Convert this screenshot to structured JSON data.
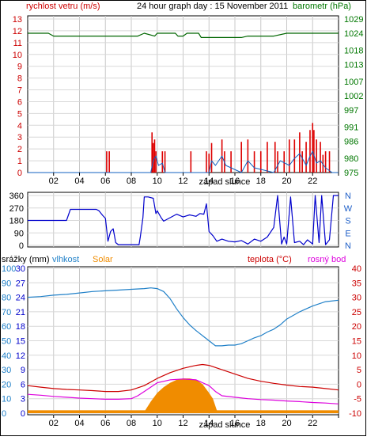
{
  "chart_data": [
    {
      "type": "line",
      "title": "24 hour graph day : 15 November 2011",
      "left_axis_label": "rychlost vetru (m/s)",
      "right_axis_label": "barometr (hPa)",
      "left_ticks": [
        "0",
        "1",
        "2",
        "3",
        "4",
        "5",
        "6",
        "7",
        "8",
        "9",
        "10",
        "11",
        "12",
        "13"
      ],
      "right_ticks": [
        "975",
        "980",
        "986",
        "991",
        "997",
        "1002",
        "1007",
        "1013",
        "1018",
        "1024",
        "1029"
      ],
      "x_ticks": [
        "02",
        "04",
        "06",
        "08",
        "10",
        "12",
        "14",
        "16",
        "18",
        "20",
        "22",
        ""
      ],
      "x_annotation": "západ slunce",
      "xlim": [
        0,
        24
      ],
      "ylim_left": [
        0,
        13
      ],
      "ylim_right": [
        975,
        1029
      ],
      "grid": true,
      "colors": {
        "wind_gust": "#dd0000",
        "wind_avg": "#1060c0",
        "pressure": "#006600"
      },
      "series": [
        {
          "key": "pressure",
          "axis": "right",
          "x": [
            0,
            1.6,
            2,
            8,
            8.5,
            9,
            9.8,
            10,
            11.4,
            11.6,
            12,
            12.3,
            13.2,
            13.4,
            16.5,
            17,
            19,
            20,
            22,
            24
          ],
          "values": [
            1024,
            1024,
            1023,
            1023,
            1023,
            1024,
            1023,
            1024,
            1024,
            1023,
            1023,
            1024,
            1024,
            1022.5,
            1022.5,
            1023,
            1023,
            1024,
            1024,
            1024
          ]
        },
        {
          "key": "wind_gust",
          "axis": "left",
          "x": [
            6.1,
            6.3,
            9.6,
            9.7,
            9.8,
            9.9,
            10.4,
            10.6,
            12.6,
            13.8,
            14.0,
            14.2,
            15.0,
            15.2,
            15.7,
            16.5,
            17.0,
            17.5,
            18.0,
            18.5,
            19.1,
            19.3,
            19.8,
            20.2,
            20.6,
            21.0,
            21.2,
            21.5,
            21.8,
            22.0,
            22.1,
            22.3,
            22.6,
            22.8,
            23.0,
            23.3
          ],
          "values": [
            1.8,
            1.8,
            3.4,
            2.5,
            2.8,
            1.8,
            1.8,
            1.8,
            1.8,
            1.8,
            1.6,
            2.5,
            2.8,
            1.8,
            1.8,
            2.6,
            2.8,
            1.8,
            1.8,
            2.6,
            2.6,
            1.8,
            1.8,
            2.8,
            2.8,
            3.4,
            1.8,
            2.6,
            3.6,
            4.2,
            3.6,
            2.8,
            2.6,
            1.5,
            1.8,
            1.8
          ]
        },
        {
          "key": "wind_avg",
          "axis": "left",
          "x": [
            0,
            9.5,
            9.7,
            9.9,
            10.1,
            10.4,
            10.6,
            14.0,
            14.2,
            14.5,
            15.0,
            15.3,
            16.5,
            17.0,
            17.5,
            19.0,
            19.5,
            20.2,
            20.6,
            21.0,
            21.5,
            21.8,
            22.0,
            22.3,
            22.6,
            23.0,
            23.5,
            24
          ],
          "values": [
            0,
            0,
            1.0,
            1.4,
            0.6,
            0.8,
            0,
            0,
            1.0,
            0.6,
            1.4,
            0.6,
            0,
            1.0,
            0.4,
            0,
            1.0,
            0.6,
            1.2,
            1.6,
            0.6,
            1.4,
            1.8,
            0.8,
            1.0,
            0.4,
            0,
            0
          ]
        }
      ]
    },
    {
      "type": "line",
      "title": "",
      "left_ticks": [
        "0",
        "90",
        "180",
        "270",
        "360"
      ],
      "right_ticks": [
        "N",
        "W",
        "S",
        "E",
        "N"
      ],
      "x_ticks": [
        "02",
        "04",
        "06",
        "08",
        "10",
        "12",
        "14",
        "16",
        "18",
        "20",
        "22",
        ""
      ],
      "xlim": [
        0,
        24
      ],
      "ylim": [
        0,
        360
      ],
      "grid": true,
      "series": [
        {
          "key": "wind_dir",
          "color": "#0000cc",
          "x": [
            0,
            3.0,
            3.3,
            5.3,
            5.5,
            5.8,
            6.0,
            6.2,
            6.4,
            6.6,
            6.8,
            7.0,
            7.2,
            7.5,
            8.6,
            8.7,
            8.9,
            9.0,
            9.3,
            9.7,
            9.9,
            10.0,
            10.3,
            10.5,
            11.0,
            11.5,
            12.0,
            12.5,
            13.0,
            13.3,
            13.6,
            13.8,
            14.0,
            14.3,
            14.6,
            15.0,
            15.5,
            16.0,
            16.5,
            17.0,
            17.5,
            18.0,
            18.5,
            19.0,
            19.3,
            19.6,
            19.8,
            20.0,
            20.3,
            20.6,
            21.0,
            21.3,
            21.6,
            22.0,
            22.2,
            22.5,
            22.7,
            23.0,
            23.3,
            23.6,
            24
          ],
          "values": [
            180,
            180,
            260,
            260,
            250,
            215,
            195,
            30,
            100,
            120,
            20,
            5,
            5,
            5,
            5,
            65,
            200,
            350,
            350,
            340,
            230,
            250,
            200,
            175,
            200,
            225,
            205,
            220,
            210,
            230,
            225,
            300,
            100,
            70,
            30,
            45,
            30,
            25,
            35,
            10,
            45,
            30,
            60,
            130,
            360,
            10,
            60,
            10,
            350,
            20,
            30,
            5,
            40,
            10,
            360,
            20,
            360,
            5,
            40,
            360,
            360
          ]
        }
      ]
    },
    {
      "type": "line",
      "title": "",
      "legend": [
        "srážky (mm)",
        "vlhkost",
        "Solar",
        "teplota (°C)",
        "rosný bod"
      ],
      "left_ticks_rain": [
        "0",
        "3",
        "6",
        "9",
        "12",
        "15",
        "18",
        "21",
        "24",
        "27",
        "30"
      ],
      "left_ticks_humidity": [
        "0",
        "10",
        "20",
        "30",
        "40",
        "50",
        "60",
        "70",
        "80",
        "90",
        "100"
      ],
      "right_ticks": [
        "-10",
        "-5",
        "0",
        "5",
        "10",
        "15",
        "20",
        "25",
        "30",
        "35",
        "40"
      ],
      "x_ticks": [
        "02",
        "04",
        "06",
        "08",
        "10",
        "12",
        "14",
        "16",
        "18",
        "20",
        "22",
        ""
      ],
      "x_annotation": "západ slunce",
      "xlim": [
        0,
        24
      ],
      "ylim_humidity": [
        0,
        100
      ],
      "ylim_temp": [
        -10,
        40
      ],
      "grid": true,
      "colors": {
        "humidity": "#2080c8",
        "temperature": "#cc0000",
        "dewpoint": "#dd00dd",
        "solar": "#f08c00",
        "rain": "#0000cc"
      },
      "series": [
        {
          "key": "humidity",
          "axis": "humidity",
          "x": [
            0,
            1,
            2,
            3,
            4,
            5,
            6,
            7,
            8,
            9,
            9.5,
            10,
            10.5,
            11,
            11.5,
            12,
            12.5,
            13,
            13.5,
            14,
            14.5,
            15,
            15.5,
            16,
            16.5,
            17,
            17.5,
            18,
            18.5,
            19,
            19.5,
            20,
            21,
            22,
            23,
            24
          ],
          "values": [
            80,
            80.5,
            81.5,
            82,
            83,
            84,
            84.5,
            85,
            85.5,
            86,
            86.5,
            86,
            84,
            79,
            72,
            66,
            61,
            57,
            53.5,
            50,
            46.5,
            46.5,
            47,
            47,
            48,
            50,
            52,
            53.5,
            56,
            58,
            61,
            65,
            70,
            74,
            77,
            78
          ]
        },
        {
          "key": "temperature",
          "axis": "temp",
          "x": [
            0,
            1,
            2,
            3,
            4,
            5,
            6,
            7,
            8,
            9,
            10,
            11,
            12,
            13,
            13.5,
            14,
            15,
            16,
            17,
            18,
            19,
            20,
            21,
            22,
            23,
            24
          ],
          "values": [
            -0.5,
            -1.0,
            -1.5,
            -1.8,
            -2.0,
            -2.2,
            -2.5,
            -2.5,
            -2.0,
            -0.5,
            2.0,
            4.0,
            5.5,
            6.5,
            6.8,
            6.5,
            5.0,
            3.5,
            2.0,
            1.0,
            0.3,
            -0.3,
            -0.8,
            -1.0,
            -1.5,
            -2.0
          ]
        },
        {
          "key": "dewpoint",
          "axis": "temp",
          "x": [
            0,
            1,
            2,
            3,
            4,
            5,
            6,
            7,
            8,
            8.5,
            9,
            9.5,
            10,
            11,
            12,
            13,
            14,
            14.5,
            15,
            16,
            17,
            18,
            19,
            20,
            21,
            22,
            23,
            24
          ],
          "values": [
            -3.5,
            -3.8,
            -4.2,
            -4.5,
            -4.8,
            -5.0,
            -5.2,
            -5.2,
            -5.0,
            -4.0,
            -2.5,
            -1.0,
            0.5,
            1.5,
            1.8,
            1.5,
            -0.5,
            -2.5,
            -4.0,
            -4.5,
            -5.0,
            -5.3,
            -5.5,
            -5.8,
            -6.0,
            -6.3,
            -6.5,
            -6.8
          ]
        },
        {
          "key": "solar",
          "axis": "temp",
          "x": [
            0,
            8.5,
            9.0,
            9.5,
            10,
            10.5,
            11,
            11.5,
            12,
            12.5,
            13,
            13.5,
            14,
            14.3,
            14.6,
            15,
            24
          ],
          "values": [
            -10,
            -10,
            -9.5,
            -6,
            -3,
            -1,
            0.5,
            1.5,
            2,
            2,
            1.5,
            0,
            -3,
            -5,
            -9,
            -10,
            -10
          ]
        },
        {
          "key": "rain_band",
          "axis": "temp",
          "x": [
            0,
            24
          ],
          "values": [
            -9,
            -9
          ]
        }
      ]
    }
  ]
}
